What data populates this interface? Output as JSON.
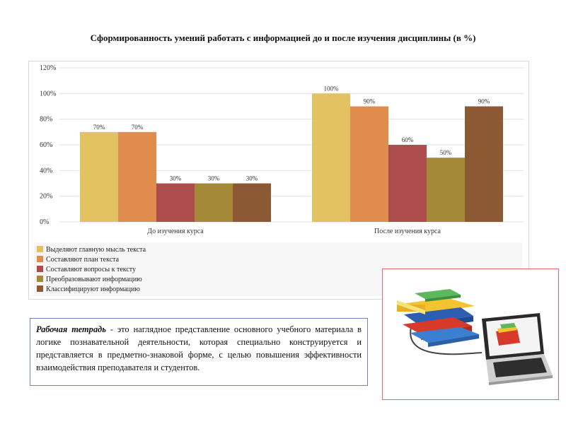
{
  "slide": {
    "title": "Сформированность умений работать с информацией до и после изучения дисциплины (в %)"
  },
  "definition": {
    "term": "Рабочая тетрадь",
    "text": " - это наглядное представление основного учебного материала в логике познавательной деятельности, которая специально конструируется и представляется в предметно-знаковой форме, с целью повышения эффективности взаимодействия преподавателя и студентов."
  },
  "illustration": {
    "icon": "books-and-laptop-icon"
  },
  "chart_data": {
    "type": "bar",
    "categories": [
      "До изучения курса",
      "После изучения курса"
    ],
    "series": [
      {
        "name": "Выделяют главную мысль текста",
        "values": [
          70,
          100
        ],
        "labels": [
          "70%",
          "100%"
        ],
        "color": "#e3c264"
      },
      {
        "name": "Составляют план текста",
        "values": [
          70,
          90
        ],
        "labels": [
          "70%",
          "90%"
        ],
        "color": "#df8c4c"
      },
      {
        "name": "Составляют вопросы к тексту",
        "values": [
          30,
          60
        ],
        "labels": [
          "30%",
          "60%"
        ],
        "color": "#ad4c4c"
      },
      {
        "name": "Преобразовывают информацию",
        "values": [
          30,
          50
        ],
        "labels": [
          "30%",
          "50%"
        ],
        "color": "#a48a37"
      },
      {
        "name": "Классифицируют информацию",
        "values": [
          30,
          90
        ],
        "labels": [
          "30%",
          "90%"
        ],
        "color": "#8b5a35"
      }
    ],
    "y_ticks": [
      0,
      20,
      40,
      60,
      80,
      100,
      120
    ],
    "y_tick_labels": [
      "0%",
      "20%",
      "40%",
      "60%",
      "80%",
      "100%",
      "120%"
    ],
    "ylim": [
      0,
      120
    ],
    "grid": true,
    "legend_position": "bottom-left"
  }
}
